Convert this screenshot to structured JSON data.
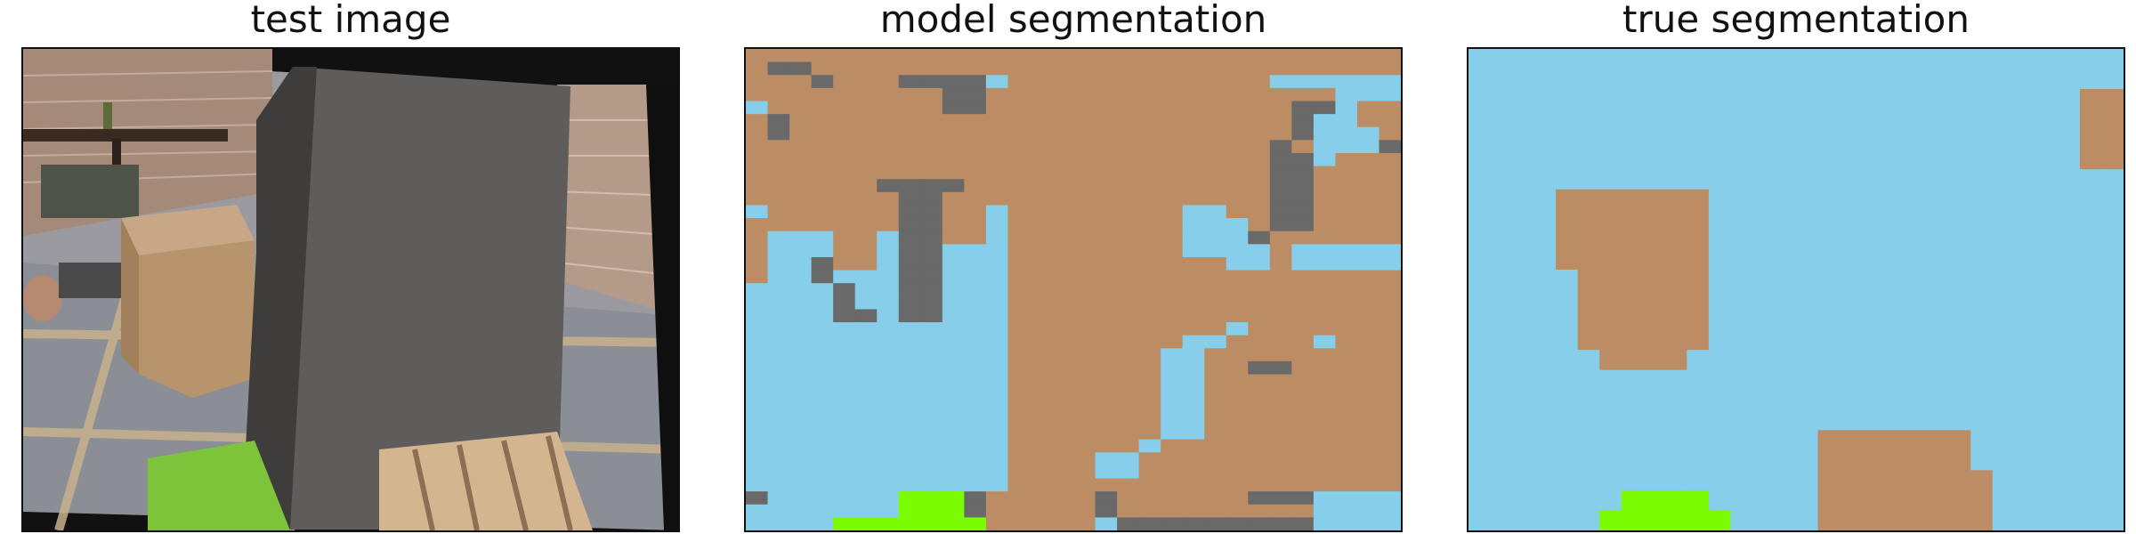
{
  "titles": {
    "test": "test image",
    "model": "model segmentation",
    "truth": "true segmentation"
  },
  "colors": {
    "sky": "#87ceeb",
    "brown": "#bc8c64",
    "gray": "#696969",
    "green": "#7cfc00"
  },
  "photo": {
    "description_icons": [
      "brick-wall",
      "table",
      "chair",
      "cardboard-box",
      "gray-board",
      "wooden-pallet",
      "grass-patch"
    ]
  },
  "model_grid": [
    "BBBBBBBBBBBBBBBBBBBBBBBBBBBBBB",
    "BGGBBBBBBBBBBBBBBBBBBBBBBBBBBB",
    "BBBGBBBGGGGSBBBBBBBBBBBBSSSSSS",
    "BBBBBBBBBGGBBBBBBBBBBBBBBBBSSS",
    "SBBBBBBBBGGBBBBBBBBBBBBBBGGSBB",
    "BGBBBBBBBBBBBBBBBBBBBBBBBGSSBB",
    "BGBBBBBBBBBBBBBBBBBBBBBBBGSSSB",
    "BBBBBBBBBBBBBBBBBBBBBBBBGBSSSG",
    "BBBBBBBBBBBBBBBBBBBBBBBBGGSBBB",
    "BBBBBBBBBBBBBBBBBBBBBBBBGGBBBB",
    "BBBBBBGGGGBBBBBBBBBBBBBBGGBBBB",
    "BBBBBBBGGBBBBBBBBBBBBBBBGGBBBB",
    "SBBBBBBGGBBSBBBBBBBBSSBBGGBBBB",
    "BBBBBBBGGBBSBBBBBBBBSSSBGGBBBB",
    "BSSSBBSGGBBSBBBBBBBBSSSGBBBBBB",
    "BSSSBBSGGSSSBBBBBBBBSSSSBSSSSS",
    "BSSGBBSGGSSSBBBBBBBBBBSSBSSSSS",
    "BSSGSSSGGSSSBBBBBBBBBBBBBBBBBB",
    "SSSSGSSGGSSSBBBBBBBBBBBBBBBBBB",
    "SSSSGSSGGSSSBBBBBBBBBBBBBBBBBB",
    "SSSSGGSGGSSSBBBBBBBBBBBBBBBBBB",
    "SSSSSSSSSSSSBBBBBBBBBBSBBBBBBB",
    "SSSSSSSSSSSSBBBBBBBBSSBBBBSBBB",
    "SSSSSSSSSSSSBBBBBBBSSBBBBBBBBB",
    "SSSSSSSSSSSSBBBBBBBSSBBGGBBBBB",
    "SSSSSSSSSSSSBBBBBBBSSBBBBBBBBB",
    "SSSSSSSSSSSSBBBBBBBSSBBBBBBBBB",
    "SSSSSSSSSSSSBBBBBBBSSBBBBBBBBB",
    "SSSSSSSSSSSSBBBBBBBSSBBBBBBBBB",
    "SSSSSSSSSSSSBBBBBBBSSBBBBBBBBB",
    "SSSSSSSSSSSSBBBBBBSBBBBBBBBBBB",
    "SSSSSSSSSSSSBBBBSSBBBBBBBBBBBB",
    "SSSSSSSSSSSSBBBBSSBBBBBBBBBBBB",
    "SSSSSSSSSSSSBBBBBBBBBBBBBBBBBB",
    "GSSSSSSLLLGBBBBBGBBBBBBGGGSSSS",
    "SSSSSSSLLLGBBBBBGBBBBBBBBBSSSS",
    "SSSSLLLLLLLBBBBBSGGGGGGGGGSSSS"
  ],
  "truth_grid": [
    "SSSSSSSSSSSSSSSSSSSSSSSSSSSSSS",
    "SSSSSSSSSSSSSSSSSSSSSSSSSSSSSS",
    "SSSSSSSSSSSSSSSSSSSSSSSSSSSSBB",
    "SSSSSSSSSSSSSSSSSSSSSSSSSSSSBB",
    "SSSSSSSSSSSSSSSSSSSSSSSSSSSSBB",
    "SSSSSSSSSSSSSSSSSSSSSSSSSSSSBB",
    "SSSSSSSSSSSSSSSSSSSSSSSSSSSSSS",
    "SSSSBBBBBBBSSSSSSSSSSSSSSSSSSS",
    "SSSSBBBBBBBSSSSSSSSSSSSSSSSSSS",
    "SSSSBBBBBBBSSSSSSSSSSSSSSSSSSS",
    "SSSSBBBBBBBSSSSSSSSSSSSSSSSSSS",
    "SSSSSBBBBBBSSSSSSSSSSSSSSSSSSS",
    "SSSSSBBBBBBSSSSSSSSSSSSSSSSSSS",
    "SSSSSBBBBBBSSSSSSSSSSSSSSSSSSS",
    "SSSSSBBBBBBSSSSSSSSSSSSSSSSSSS",
    "SSSSSSBBBBSSSSSSSSSSSSSSSSSSSS",
    "SSSSSSSSSSSSSSSSSSSSSSSSSSSSSS",
    "SSSSSSSSSSSSSSSSSSSSSSSSSSSSSS",
    "SSSSSSSSSSSSSSSSSSSSSSSSSSSSSS",
    "SSSSSSSSSSSSSSSSBBBBBBBSSSSSSS",
    "SSSSSSSSSSSSSSSSBBBBBBBSSSSSSS",
    "SSSSSSSSSSSSSSSSBBBBBBBBSSSSSS",
    "SSSSSSSLLLLSSSSSBBBBBBBBSSSSSS",
    "SSSSSSLLLLLLSSSSBBBBBBBBSSSSSS"
  ]
}
